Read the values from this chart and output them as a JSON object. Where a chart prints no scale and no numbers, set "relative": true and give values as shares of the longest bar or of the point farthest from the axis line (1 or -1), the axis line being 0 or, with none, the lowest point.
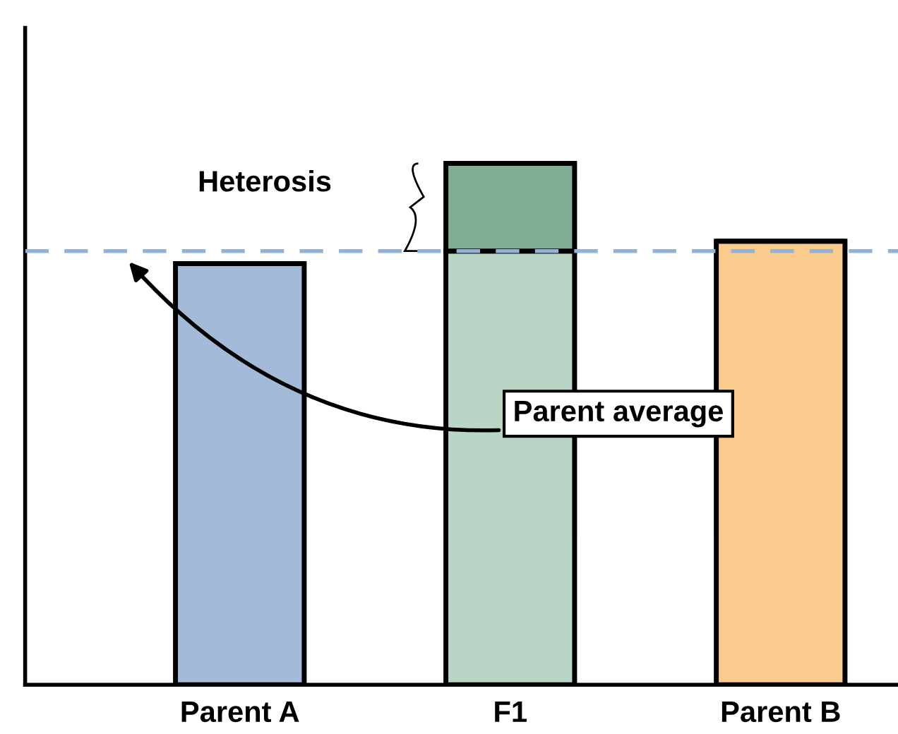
{
  "chart_data": {
    "type": "bar",
    "relative": true,
    "stacked": true,
    "categories": [
      "Parent A",
      "F1",
      "Parent B"
    ],
    "series": [
      {
        "colors": [
          "#a3bbd9",
          "#b9d5c5",
          "#f9cb8c"
        ],
        "values": [
          0.808,
          0.832,
          0.851
        ]
      },
      {
        "color": "#7fae94",
        "values": [
          null,
          0.168,
          null
        ]
      }
    ],
    "ref_lines": [
      {
        "axis": "y",
        "value": 0.832,
        "color": "#8fb3dd",
        "line_style": "dashed"
      }
    ],
    "annotations": [
      "Heterosis",
      "Parent average"
    ],
    "grid": false,
    "legend": false
  }
}
